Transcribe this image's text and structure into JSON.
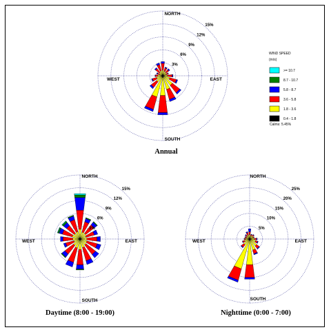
{
  "colors": {
    "bin_ge_10_7": "#00ffff",
    "bin_8_7_10_7": "#008000",
    "bin_5_8_8_7": "#0000ff",
    "bin_3_6_5_8": "#ff0000",
    "bin_1_8_3_6": "#ffff00",
    "bin_0_4_1_8": "#000000",
    "grid": "#6a6ab0"
  },
  "legend": {
    "title": "WIND SPEED",
    "units": "(m/s)",
    "items": [
      {
        "label": ">= 10.7",
        "color": "#00ffff"
      },
      {
        "label": "8.7 - 10.7",
        "color": "#008000"
      },
      {
        "label": "5.8 - 8.7",
        "color": "#0000ff"
      },
      {
        "label": "3.6 - 5.8",
        "color": "#ff0000"
      },
      {
        "label": "1.8 - 3.6",
        "color": "#ffff00"
      },
      {
        "label": "0.4 - 1.8",
        "color": "#000000"
      }
    ],
    "calms": "Calms: 5.45%"
  },
  "chart_data": [
    {
      "type": "wind_rose",
      "caption": "Annual",
      "directions": {
        "n": "NORTH",
        "s": "SOUTH",
        "e": "EAST",
        "w": "WEST"
      },
      "rings": [
        3,
        6,
        9,
        12,
        15
      ],
      "ring_labels": [
        "3%",
        "6%",
        "9%",
        "12%",
        "15%"
      ],
      "bins": [
        "0.4 - 1.8",
        "1.8 - 3.6",
        "3.6 - 5.8",
        "5.8 - 8.7",
        "8.7 - 10.7",
        ">= 10.7"
      ],
      "sectors": [
        [
          0.3,
          1.0,
          1.6,
          0.4,
          0,
          0
        ],
        [
          0.3,
          0.8,
          0.8,
          0.2,
          0,
          0
        ],
        [
          0.3,
          0.7,
          0.8,
          0.3,
          0,
          0
        ],
        [
          0.2,
          0.6,
          0.5,
          0.1,
          0,
          0
        ],
        [
          0.3,
          0.8,
          1.1,
          0.2,
          0,
          0
        ],
        [
          0.3,
          1.4,
          1.6,
          0.3,
          0,
          0
        ],
        [
          0.3,
          2.5,
          2.2,
          0.4,
          0,
          0
        ],
        [
          0.3,
          3.0,
          2.4,
          0.5,
          0,
          0
        ],
        [
          0.4,
          4.2,
          4.0,
          0.5,
          0,
          0
        ],
        [
          0.4,
          4.7,
          3.0,
          0.5,
          0,
          0
        ],
        [
          0.3,
          1.5,
          1.6,
          0.4,
          0,
          0
        ],
        [
          0.3,
          1.2,
          1.0,
          0.2,
          0,
          0
        ],
        [
          0.3,
          0.9,
          0.5,
          0.1,
          0,
          0
        ],
        [
          0.2,
          0.6,
          0.5,
          0.2,
          0,
          0
        ],
        [
          0.2,
          0.8,
          1.1,
          0.3,
          0,
          0
        ],
        [
          0.3,
          0.9,
          1.5,
          0.4,
          0,
          0
        ]
      ]
    },
    {
      "type": "wind_rose",
      "caption": "Daytime (8:00 - 19:00)",
      "directions": {
        "n": "NORTH",
        "s": "SOUTH",
        "e": "EAST",
        "w": "WEST"
      },
      "rings": [
        3,
        6,
        9,
        12,
        15
      ],
      "ring_labels": [
        "3%",
        "6%",
        "9%",
        "12%",
        "15%"
      ],
      "bins": [
        "0.4 - 1.8",
        "1.8 - 3.6",
        "3.6 - 5.8",
        "5.8 - 8.7",
        "8.7 - 10.7",
        ">= 10.7"
      ],
      "sectors": [
        [
          0.3,
          2.0,
          4.5,
          3.0,
          0.6,
          0.3
        ],
        [
          0.3,
          1.4,
          2.5,
          0.8,
          0.2,
          0
        ],
        [
          0.3,
          1.4,
          2.5,
          0.8,
          0.2,
          0
        ],
        [
          0.3,
          1.2,
          2.0,
          0.8,
          0,
          0
        ],
        [
          0.3,
          1.3,
          2.4,
          0.8,
          0,
          0
        ],
        [
          0.3,
          1.4,
          2.5,
          0.9,
          0,
          0
        ],
        [
          0.3,
          1.5,
          2.8,
          1.0,
          0,
          0
        ],
        [
          0.3,
          1.8,
          3.2,
          0.9,
          0,
          0
        ],
        [
          0.3,
          2.2,
          3.6,
          1.0,
          0.2,
          0
        ],
        [
          0.3,
          1.9,
          3.5,
          1.1,
          0,
          0
        ],
        [
          0.3,
          1.6,
          2.6,
          0.9,
          0.2,
          0
        ],
        [
          0.3,
          1.2,
          2.0,
          0.5,
          0,
          0
        ],
        [
          0.3,
          1.4,
          2.3,
          0.6,
          0,
          0
        ],
        [
          0.3,
          1.6,
          2.4,
          0.8,
          0.3,
          0.1
        ],
        [
          0.3,
          1.4,
          2.3,
          0.9,
          0.4,
          0.1
        ],
        [
          0.3,
          1.5,
          2.9,
          0.9,
          0.2,
          0
        ]
      ]
    },
    {
      "type": "wind_rose",
      "caption": "Nighttime (0:00 - 7:00)",
      "directions": {
        "n": "NORTH",
        "s": "SOUTH",
        "e": "EAST",
        "w": "WEST"
      },
      "rings": [
        5,
        10,
        15,
        20,
        25
      ],
      "ring_labels": [
        "5%",
        "10%",
        "15%",
        "20%",
        "25%"
      ],
      "bins": [
        "0.4 - 1.8",
        "1.8 - 3.6",
        "3.6 - 5.8",
        "5.8 - 8.7",
        "8.7 - 10.7",
        ">= 10.7"
      ],
      "sectors": [
        [
          0.5,
          1.3,
          1.0,
          1.2,
          0,
          0
        ],
        [
          0.4,
          0.8,
          0.6,
          0.2,
          0,
          0
        ],
        [
          0.4,
          1.2,
          0.5,
          0.2,
          0,
          0
        ],
        [
          0.4,
          1.0,
          0.4,
          0.1,
          0,
          0
        ],
        [
          0.4,
          1.5,
          0.8,
          0.3,
          0,
          0
        ],
        [
          0.4,
          2.0,
          0.8,
          0.3,
          0,
          0
        ],
        [
          0.5,
          3.0,
          1.2,
          0.3,
          0,
          0
        ],
        [
          0.5,
          4.0,
          1.5,
          0.4,
          0,
          0
        ],
        [
          0.6,
          9.5,
          5.0,
          0.7,
          0,
          0
        ],
        [
          0.6,
          11.5,
          4.6,
          0.8,
          0,
          0
        ],
        [
          0.5,
          2.4,
          1.2,
          0.3,
          0,
          0
        ],
        [
          0.4,
          1.6,
          0.8,
          0.2,
          0,
          0
        ],
        [
          0.4,
          1.2,
          0.5,
          0.1,
          0,
          0
        ],
        [
          0.4,
          0.9,
          0.5,
          0.2,
          0,
          0
        ],
        [
          0.4,
          1.0,
          0.6,
          0.3,
          0,
          0
        ],
        [
          0.4,
          1.2,
          1.0,
          0.4,
          0,
          0
        ]
      ]
    }
  ]
}
